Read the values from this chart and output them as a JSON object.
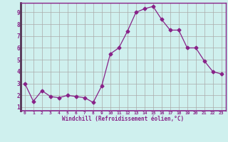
{
  "x": [
    0,
    1,
    2,
    3,
    4,
    5,
    6,
    7,
    8,
    9,
    10,
    11,
    12,
    13,
    14,
    15,
    16,
    17,
    18,
    19,
    20,
    21,
    22,
    23
  ],
  "y": [
    3.0,
    1.5,
    2.4,
    1.9,
    1.8,
    2.0,
    1.9,
    1.8,
    1.4,
    2.8,
    5.5,
    6.0,
    7.4,
    9.0,
    9.3,
    9.5,
    8.4,
    7.5,
    7.5,
    6.0,
    6.0,
    4.9,
    4.0,
    3.8
  ],
  "line_color": "#882288",
  "marker": "D",
  "marker_size": 2.5,
  "bg_color": "#cff0ee",
  "grid_color": "#aaaaaa",
  "xlabel": "Windchill (Refroidissement éolien,°C)",
  "xlabel_color": "#882288",
  "tick_color": "#882288",
  "spine_color": "#882288",
  "yticks": [
    1,
    2,
    3,
    4,
    5,
    6,
    7,
    8,
    9
  ],
  "xticks": [
    0,
    1,
    2,
    3,
    4,
    5,
    6,
    7,
    8,
    9,
    10,
    11,
    12,
    13,
    14,
    15,
    16,
    17,
    18,
    19,
    20,
    21,
    22,
    23
  ],
  "ylim": [
    0.7,
    9.8
  ],
  "xlim": [
    -0.5,
    23.5
  ],
  "figsize": [
    3.2,
    2.0
  ],
  "dpi": 100
}
